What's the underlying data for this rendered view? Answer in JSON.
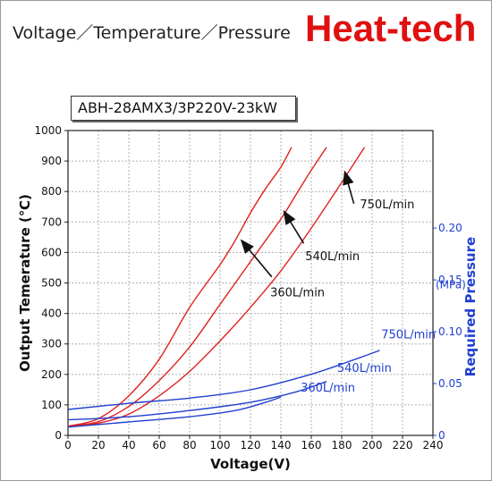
{
  "header": {
    "title": "Voltage／Temperature／Pressure",
    "brand": "Heat-tech"
  },
  "model": "ABH-28AMX3/3P220V-23kW",
  "colors": {
    "temperature": "#e02020",
    "pressure": "#1f3fd0",
    "brand": "#e01010"
  },
  "chart_data": {
    "type": "line",
    "title": "Voltage／Temperature／Pressure",
    "xlabel": "Voltage(V)",
    "ylabel": "Output Temerature (℃)",
    "y2label": "Required Pressure",
    "y2unit": "(MPa)",
    "xlim": [
      0,
      240
    ],
    "ylim": [
      0,
      1000
    ],
    "y2lim": [
      0,
      0.25
    ],
    "xticks": [
      "0",
      "20",
      "40",
      "60",
      "80",
      "100",
      "120",
      "140",
      "160",
      "180",
      "200",
      "220",
      "240"
    ],
    "yticks": [
      "0",
      "100",
      "200",
      "300",
      "400",
      "500",
      "600",
      "700",
      "800",
      "900",
      "1000"
    ],
    "y2ticks": [
      "0",
      "0.05",
      "0.10",
      "0.15",
      "0.20"
    ],
    "grid": true,
    "temperature_series": [
      {
        "name": "360L/min",
        "axis": "left",
        "x": [
          0,
          20,
          40,
          60,
          80,
          100,
          110,
          120,
          130,
          140,
          147
        ],
        "y": [
          30,
          55,
          130,
          250,
          420,
          560,
          640,
          730,
          810,
          880,
          945
        ]
      },
      {
        "name": "540L/min",
        "axis": "left",
        "x": [
          0,
          20,
          40,
          60,
          80,
          100,
          120,
          140,
          150,
          160,
          170
        ],
        "y": [
          30,
          45,
          95,
          180,
          290,
          430,
          570,
          710,
          790,
          870,
          945
        ]
      },
      {
        "name": "750L/min",
        "axis": "left",
        "x": [
          0,
          20,
          40,
          60,
          80,
          100,
          120,
          140,
          160,
          180,
          195
        ],
        "y": [
          30,
          40,
          70,
          130,
          210,
          310,
          420,
          540,
          680,
          830,
          945
        ]
      }
    ],
    "pressure_series": [
      {
        "name": "750L/min",
        "axis": "right",
        "x": [
          0,
          40,
          80,
          120,
          160,
          190,
          205
        ],
        "y": [
          0.025,
          0.031,
          0.036,
          0.044,
          0.059,
          0.074,
          0.082
        ]
      },
      {
        "name": "540L/min",
        "axis": "right",
        "x": [
          0,
          40,
          80,
          120,
          150,
          170
        ],
        "y": [
          0.015,
          0.018,
          0.024,
          0.032,
          0.042,
          0.052
        ]
      },
      {
        "name": "360L/min",
        "axis": "right",
        "x": [
          0,
          40,
          80,
          110,
          130,
          140
        ],
        "y": [
          0.008,
          0.013,
          0.018,
          0.024,
          0.032,
          0.037
        ]
      }
    ],
    "annotations": [
      {
        "text": "750L/min",
        "axis": "left"
      },
      {
        "text": "540L/min",
        "axis": "left"
      },
      {
        "text": "360L/min",
        "axis": "left"
      },
      {
        "text": "750L/min",
        "axis": "right"
      },
      {
        "text": "540L/min",
        "axis": "right"
      },
      {
        "text": "360L/min",
        "axis": "right"
      }
    ]
  }
}
